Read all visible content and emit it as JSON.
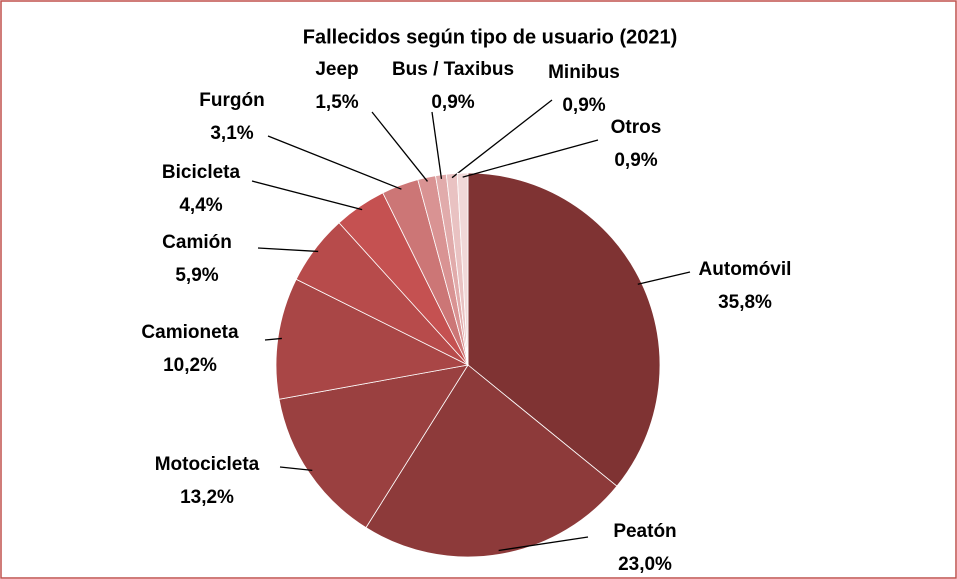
{
  "chart_data": {
    "type": "pie",
    "title": "Fallecidos según tipo de usuario (2021)",
    "categories": [
      "Automóvil",
      "Peatón",
      "Motocicleta",
      "Camioneta",
      "Camión",
      "Bicicleta",
      "Furgón",
      "Jeep",
      "Bus / Taxibus",
      "Minibus",
      "Otros"
    ],
    "values": [
      35.8,
      23.0,
      13.2,
      10.2,
      5.9,
      4.4,
      3.1,
      1.5,
      0.9,
      0.9,
      0.9
    ],
    "value_labels": [
      "35,8%",
      "23,0%",
      "13,2%",
      "10,2%",
      "5,9%",
      "4,4%",
      "3,1%",
      "1,5%",
      "0,9%",
      "0,9%",
      "0,9%"
    ],
    "colors": [
      "#7f3333",
      "#8d3a3a",
      "#9a4040",
      "#a94646",
      "#b74b4b",
      "#c55151",
      "#cc7676",
      "#d99393",
      "#e1abab",
      "#e9c2c2",
      "#f1d8d8"
    ]
  }
}
